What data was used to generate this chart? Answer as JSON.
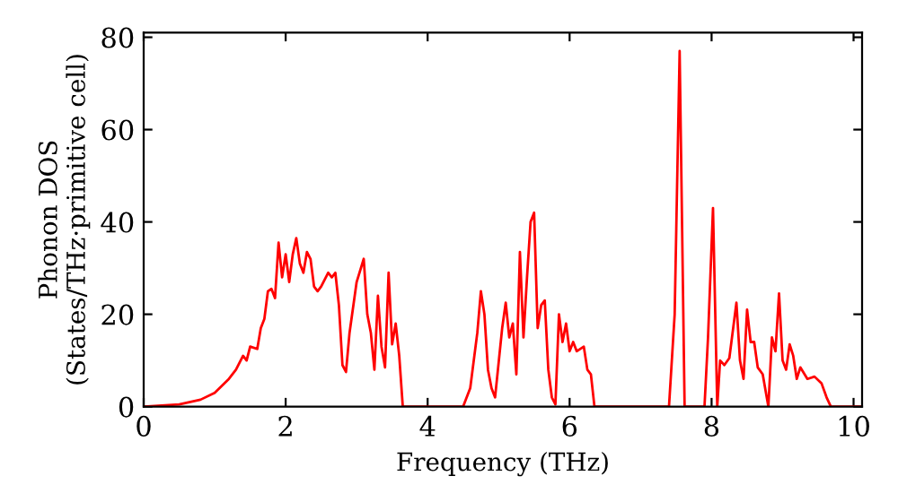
{
  "chart_data": {
    "type": "line",
    "xlabel": "Frequency (THz)",
    "ylabel": "Phonon DOS\n(States/THz·primitive cell)",
    "xlim": [
      0,
      10.12
    ],
    "ylim": [
      0,
      81
    ],
    "xticks": [
      0,
      2,
      4,
      6,
      8,
      10
    ],
    "yticks": [
      0,
      20,
      40,
      60,
      80
    ],
    "grid": false,
    "legend": false,
    "series": [
      {
        "color": "#ff0000",
        "x": [
          0,
          0.5,
          0.8,
          1.0,
          1.2,
          1.3,
          1.4,
          1.45,
          1.5,
          1.6,
          1.65,
          1.7,
          1.75,
          1.8,
          1.85,
          1.9,
          1.95,
          2.0,
          2.05,
          2.1,
          2.15,
          2.2,
          2.25,
          2.3,
          2.35,
          2.4,
          2.45,
          2.5,
          2.6,
          2.65,
          2.7,
          2.75,
          2.8,
          2.85,
          2.9,
          3.0,
          3.1,
          3.15,
          3.2,
          3.25,
          3.3,
          3.35,
          3.4,
          3.45,
          3.5,
          3.55,
          3.6,
          3.65,
          4.5,
          4.6,
          4.7,
          4.75,
          4.8,
          4.85,
          4.9,
          4.95,
          5.05,
          5.1,
          5.15,
          5.2,
          5.25,
          5.3,
          5.35,
          5.4,
          5.45,
          5.5,
          5.55,
          5.6,
          5.65,
          5.7,
          5.75,
          5.8,
          5.85,
          5.9,
          5.95,
          6.0,
          6.05,
          6.1,
          6.2,
          6.25,
          6.3,
          6.35,
          7.4,
          7.48,
          7.55,
          7.62,
          7.9,
          7.95,
          8.02,
          8.08,
          8.12,
          8.18,
          8.25,
          8.35,
          8.4,
          8.45,
          8.5,
          8.55,
          8.6,
          8.65,
          8.72,
          8.8,
          8.85,
          8.9,
          8.95,
          9.0,
          9.05,
          9.1,
          9.15,
          9.2,
          9.25,
          9.35,
          9.45,
          9.55,
          9.62,
          9.68,
          10.12
        ],
        "values": [
          0,
          0.5,
          1.5,
          3,
          6,
          8,
          11,
          10,
          13,
          12.5,
          17,
          19,
          25,
          25.5,
          23.5,
          35.5,
          28,
          33,
          27,
          33,
          36.5,
          31,
          29,
          33.5,
          32,
          26,
          25,
          26,
          29,
          28,
          29,
          22,
          9,
          7.5,
          16,
          27,
          32,
          20,
          16,
          8,
          24,
          13,
          8.5,
          29,
          13.5,
          18,
          11,
          0,
          0,
          4,
          16,
          25,
          20,
          8,
          4,
          2,
          17,
          22.5,
          15,
          18,
          7,
          33.5,
          15,
          28,
          40,
          42,
          17,
          22,
          23,
          8,
          2,
          0.5,
          20,
          14,
          18,
          12,
          14,
          12,
          13,
          8,
          7,
          0,
          0,
          20,
          77,
          0,
          0,
          15,
          43,
          0,
          10,
          9,
          10.5,
          22.5,
          10,
          6,
          21,
          14,
          14,
          8.5,
          7,
          0,
          15,
          12,
          24.5,
          10,
          8,
          13.5,
          11,
          6,
          8.5,
          6,
          6.5,
          5,
          2,
          0,
          0
        ]
      }
    ]
  }
}
